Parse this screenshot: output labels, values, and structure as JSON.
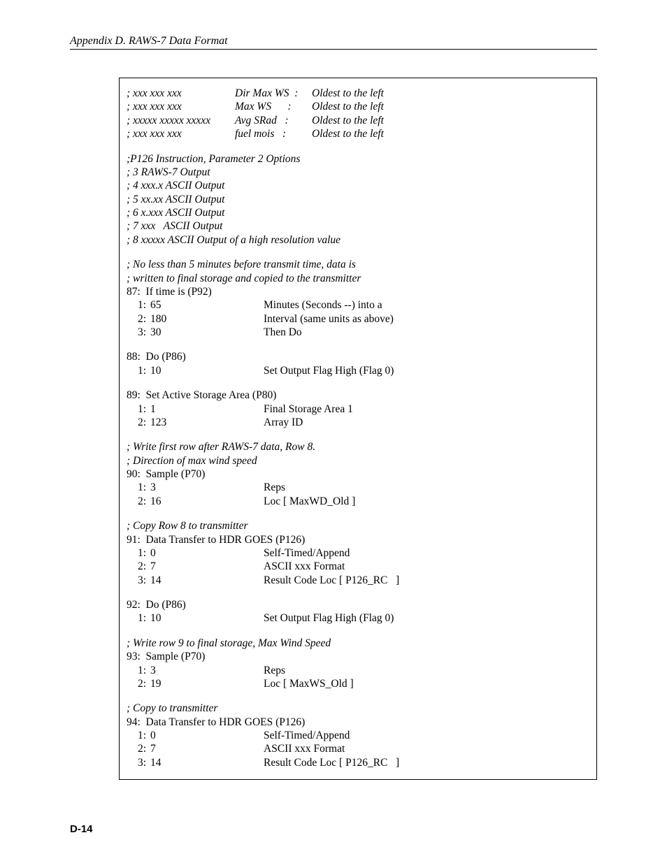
{
  "header": "Appendix D.  RAWS-7 Data Format",
  "footer": "D-14",
  "fmt": {
    "r1": {
      "pat": "; xxx xxx xxx",
      "label": "Dir Max WS  :",
      "note": "Oldest to the left"
    },
    "r2": {
      "pat": "; xxx xxx xxx",
      "label": "Max WS      :",
      "note": "Oldest to the left"
    },
    "r3": {
      "pat": "; xxxxx xxxxx xxxxx",
      "label": "Avg SRad   :",
      "note": "Oldest to the left"
    },
    "r4": {
      "pat": "; xxx xxx xxx",
      "label": "fuel mois   :",
      "note": "Oldest to the left"
    }
  },
  "opts": {
    "title": ";P126 Instruction, Parameter 2 Options",
    "l1": "; 3 RAWS-7 Output",
    "l2": "; 4 xxx.x ASCII Output",
    "l3": "; 5 xx.xx ASCII Output",
    "l4": "; 6 x.xxx ASCII Output",
    "l5": "; 7 xxx   ASCII Output",
    "l6": "; 8 xxxxx ASCII Output of a high resolution value"
  },
  "c1": {
    "a": "; No less than 5 minutes before transmit time, data is",
    "b": "; written to final storage and copied to the transmitter"
  },
  "s87": {
    "head": "87:  If time is (P92)",
    "p1n": "1:",
    "p1v": "65",
    "p1d": "Minutes (Seconds --) into a",
    "p2n": "2:",
    "p2v": "180",
    "p2d": "Interval (same units as above)",
    "p3n": "3:",
    "p3v": "30",
    "p3d": "Then Do"
  },
  "s88": {
    "head": "88:  Do (P86)",
    "p1n": "1:",
    "p1v": "10",
    "p1d": "Set Output Flag High (Flag 0)"
  },
  "s89": {
    "head": "89:  Set Active Storage Area (P80)",
    "p1n": "1:",
    "p1v": "1",
    "p1d": "Final Storage Area 1",
    "p2n": "2:",
    "p2v": "123",
    "p2d": "Array ID"
  },
  "c2": {
    "a": "; Write first row after RAWS-7 data, Row 8.",
    "b": "; Direction of max wind speed"
  },
  "s90": {
    "head": "90:  Sample (P70)",
    "p1n": "1:",
    "p1v": "3",
    "p1d": "Reps",
    "p2n": "2:",
    "p2v": "16",
    "p2d": "Loc [ MaxWD_Old ]"
  },
  "c3": "; Copy Row 8 to transmitter",
  "s91": {
    "head": "91:  Data Transfer to HDR GOES (P126)",
    "p1n": "1:",
    "p1v": "0",
    "p1d": "Self-Timed/Append",
    "p2n": "2:",
    "p2v": "7",
    "p2d": "ASCII xxx Format",
    "p3n": "3:",
    "p3v": "14",
    "p3d": "Result Code Loc [ P126_RC   ]"
  },
  "s92": {
    "head": "92:  Do (P86)",
    "p1n": "1:",
    "p1v": "10",
    "p1d": "Set Output Flag High (Flag 0)"
  },
  "c4": "; Write row 9 to final storage, Max Wind Speed",
  "s93": {
    "head": "93:  Sample (P70)",
    "p1n": "1:",
    "p1v": "3",
    "p1d": "Reps",
    "p2n": "2:",
    "p2v": "19",
    "p2d": "Loc [ MaxWS_Old ]"
  },
  "c5": "; Copy to transmitter",
  "s94": {
    "head": "94:  Data Transfer to HDR GOES (P126)",
    "p1n": "1:",
    "p1v": "0",
    "p1d": "Self-Timed/Append",
    "p2n": "2:",
    "p2v": "7",
    "p2d": "ASCII xxx Format",
    "p3n": "3:",
    "p3v": "14",
    "p3d": "Result Code Loc [ P126_RC   ]"
  }
}
